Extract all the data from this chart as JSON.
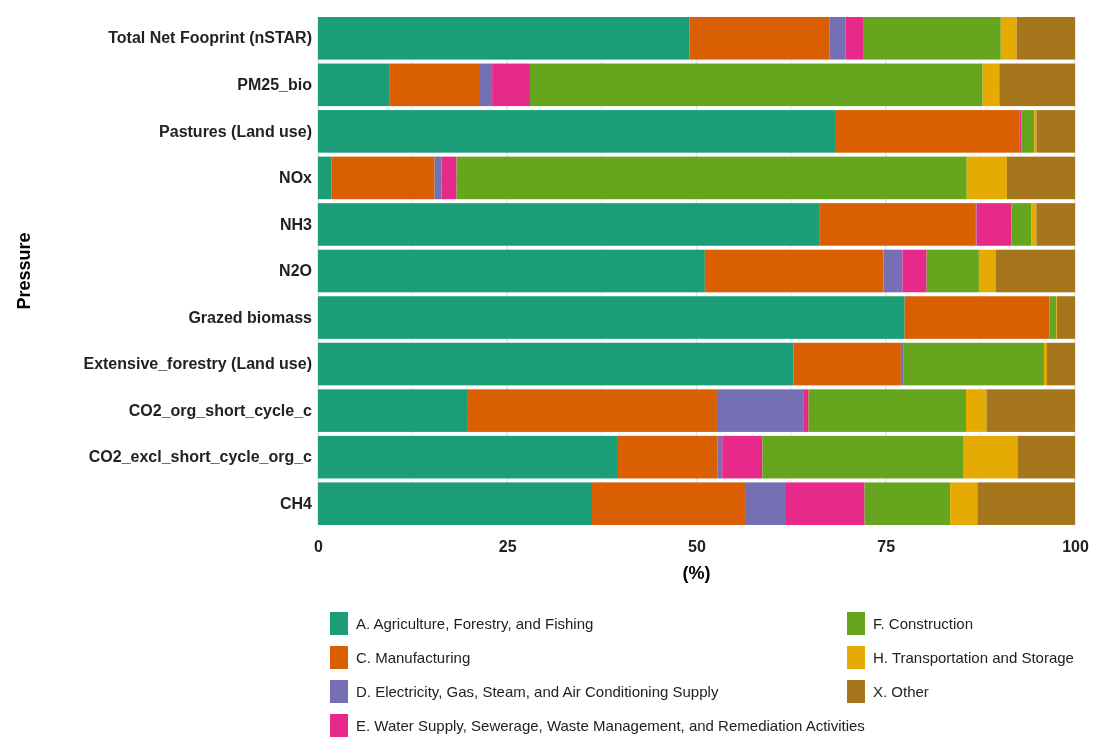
{
  "chart_data": {
    "type": "bar",
    "orientation": "horizontal",
    "stacked": true,
    "ylabel": "Pressure",
    "xlabel": "(%)",
    "categories": [
      "Total Net Fooprint (nSTAR)",
      "PM25_bio",
      "Pastures (Land use)",
      "NOx",
      "NH3",
      "N2O",
      "Grazed biomass",
      "Extensive_forestry (Land use)",
      "CO2_org_short_cycle_c",
      "CO2_excl_short_cycle_org_c",
      "CH4"
    ],
    "series": [
      {
        "name": "A. Agriculture, Forestry, and Fishing",
        "color": "#1b9e77",
        "values": [
          49.1,
          9.4,
          68.3,
          1.8,
          66.2,
          51.1,
          77.5,
          62.8,
          19.8,
          39.5,
          36.2
        ]
      },
      {
        "name": "C. Manufacturing",
        "color": "#d95f02",
        "values": [
          18.5,
          12.0,
          24.4,
          13.6,
          20.6,
          23.6,
          19.1,
          14.2,
          32.9,
          13.3,
          20.2
        ]
      },
      {
        "name": "D. Electricity, Gas, Steam, and Air Conditioning Supply",
        "color": "#7570b3",
        "values": [
          2.1,
          1.6,
          0,
          0.9,
          0.2,
          2.5,
          0,
          0.3,
          11.4,
          0.6,
          5.3
        ]
      },
      {
        "name": "E. Water Supply, Sewerage, Waste Management, and Remediation Activities",
        "color": "#e7298a",
        "values": [
          2.4,
          5.0,
          0.2,
          2.0,
          4.6,
          3.2,
          0,
          0,
          0.7,
          5.3,
          10.5
        ]
      },
      {
        "name": "F. Construction",
        "color": "#66a61e",
        "values": [
          18.1,
          59.8,
          1.7,
          67.4,
          2.6,
          6.9,
          0.9,
          18.6,
          20.8,
          26.6,
          11.3
        ]
      },
      {
        "name": "H. Transportation and Storage",
        "color": "#e6ab02",
        "values": [
          2.1,
          2.2,
          0.3,
          5.3,
          0.7,
          2.2,
          0.1,
          0.4,
          2.7,
          7.1,
          3.6
        ]
      },
      {
        "name": "X. Other",
        "color": "#a6761d",
        "values": [
          7.7,
          10.0,
          5.1,
          9.0,
          5.1,
          10.5,
          2.4,
          3.7,
          11.7,
          7.6,
          12.9
        ]
      }
    ],
    "xlim": [
      0,
      100
    ],
    "xticks": [
      0,
      25,
      50,
      75,
      100
    ],
    "grid": true,
    "legend": "bottom"
  }
}
